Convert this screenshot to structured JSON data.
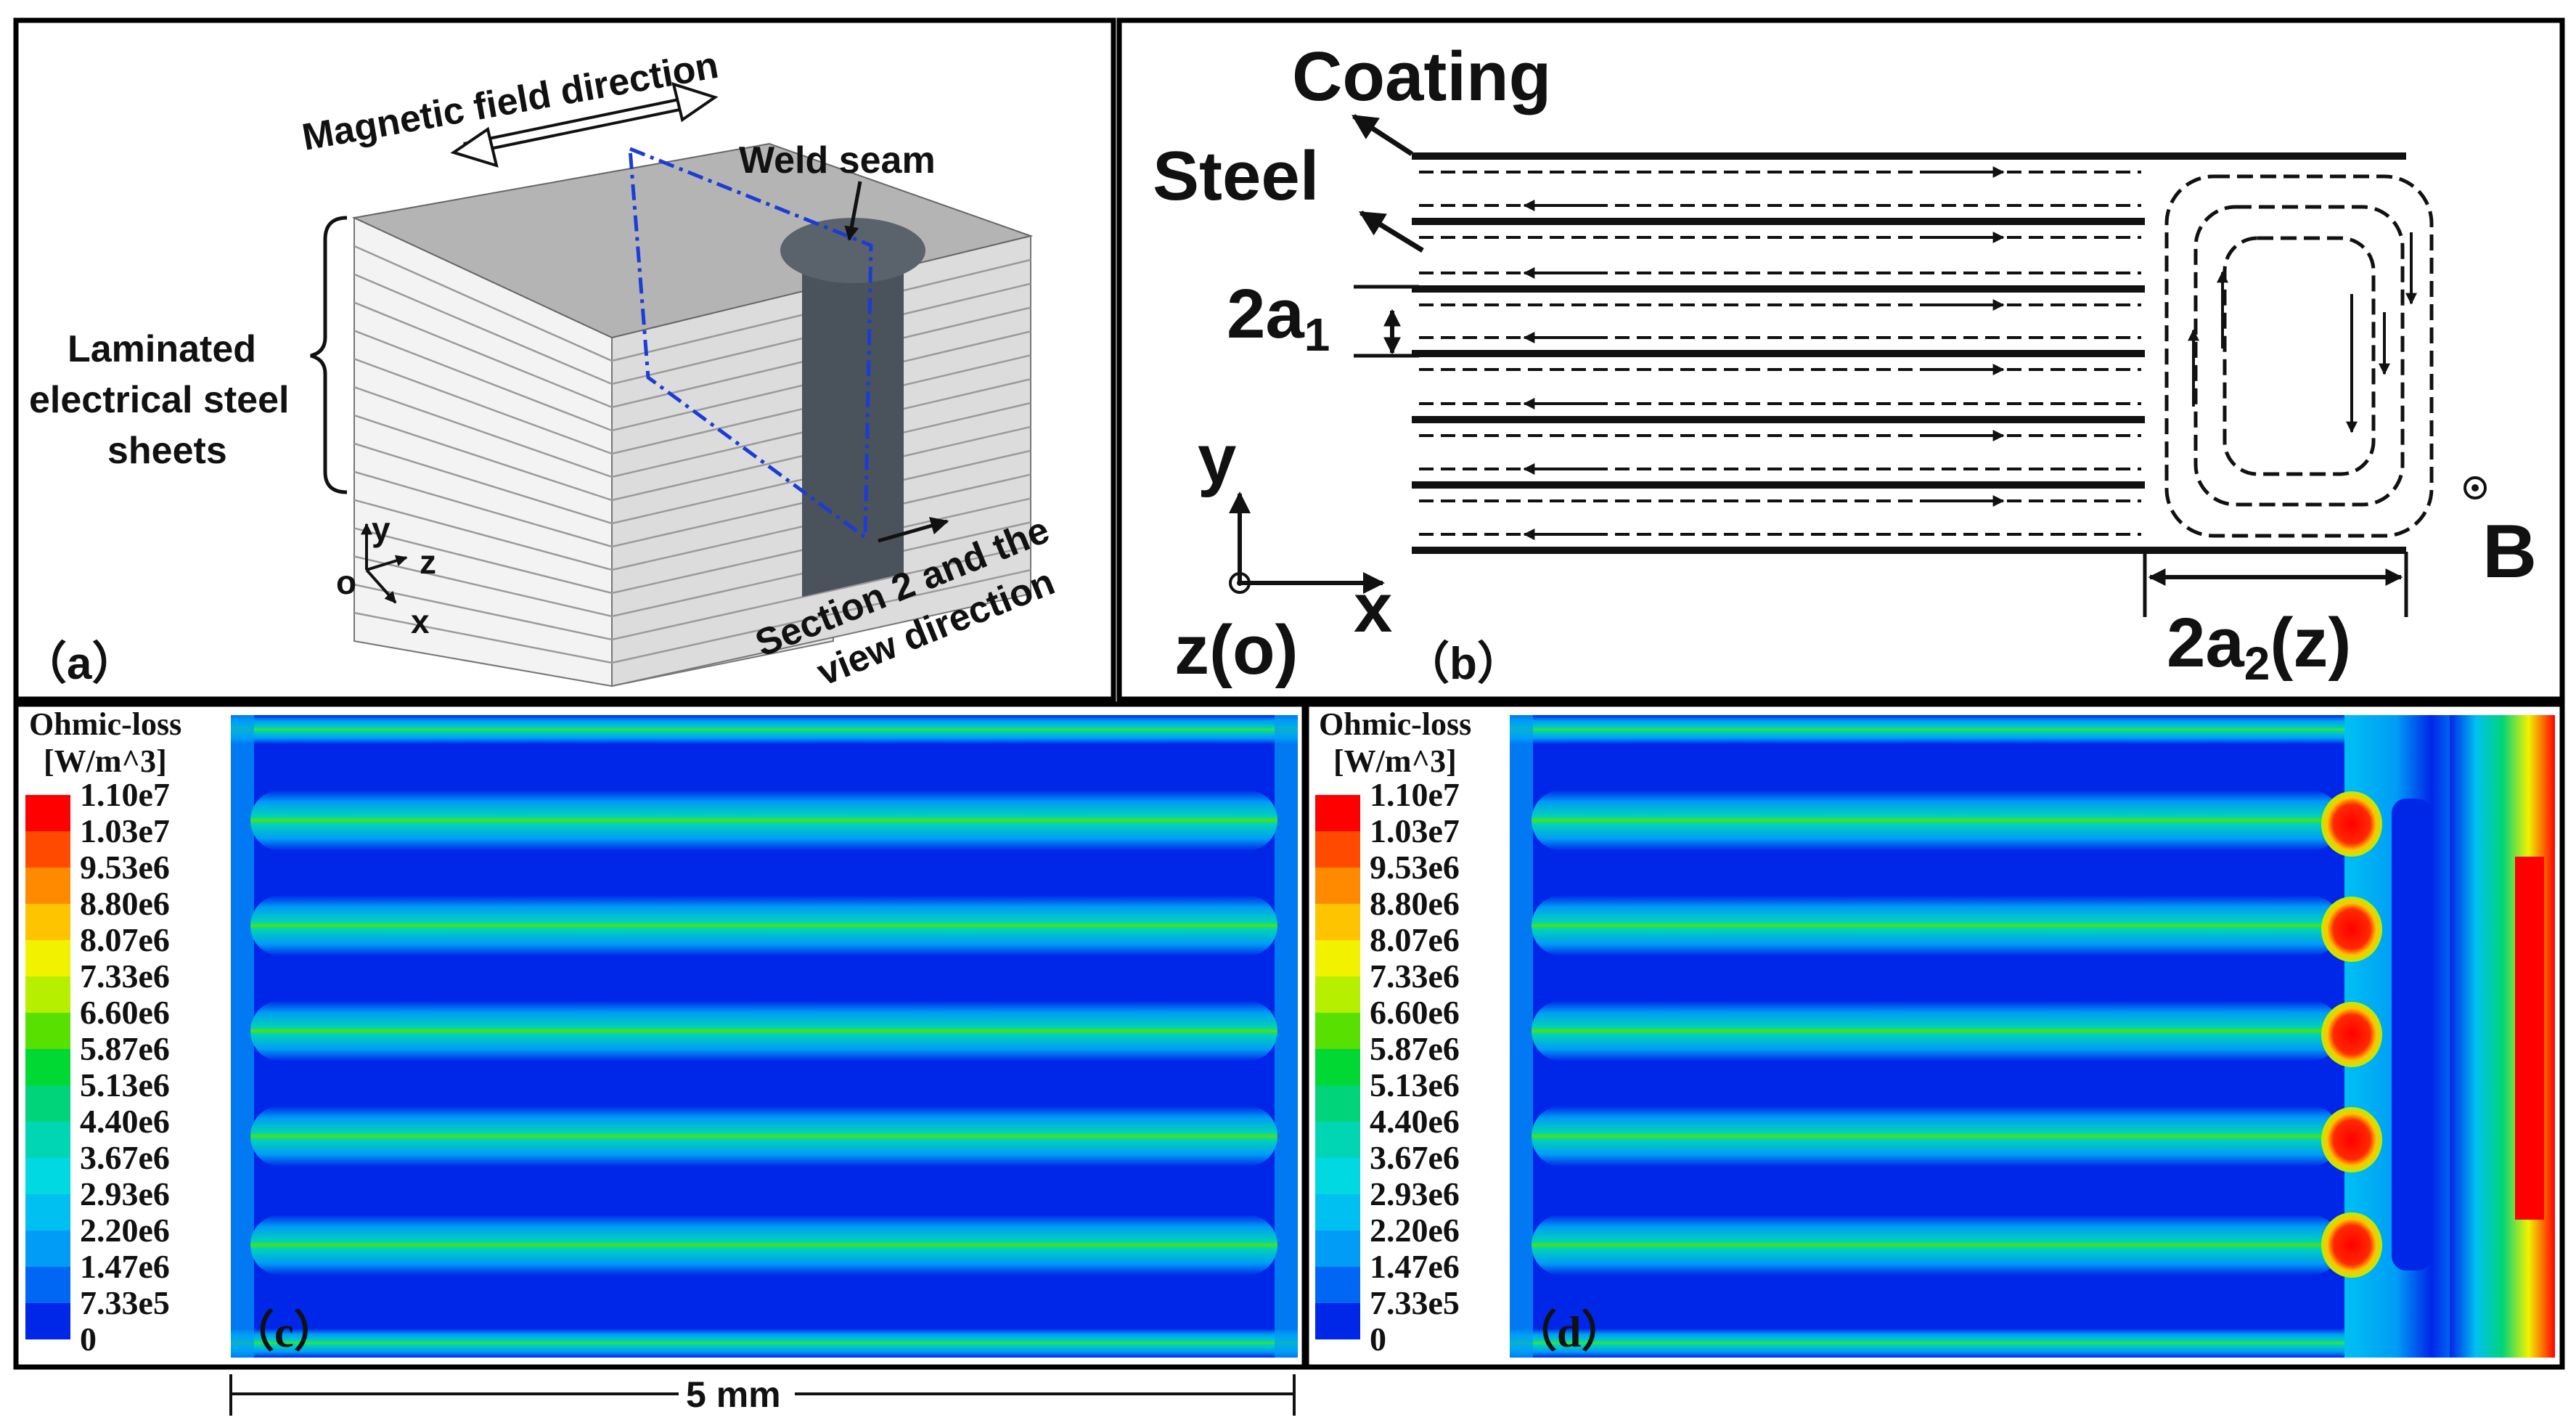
{
  "panel_a": {
    "label": "（a）",
    "magnetic_field": "Magnetic field direction",
    "weld_seam": "Weld seam",
    "laminated_line1": "Laminated",
    "laminated_line2": "electrical steel",
    "laminated_line3": "sheets",
    "section_line1": "Section 2 and the",
    "section_line2": "view direction",
    "axis_y": "y",
    "axis_z": "z",
    "axis_o": "o",
    "axis_x": "x"
  },
  "panel_b": {
    "label": "（b）",
    "coating": "Coating",
    "steel": "Steel",
    "a1_main": "2a",
    "a1_sub": "1",
    "a2_main": "2a",
    "a2_sub": "2",
    "a2_suffix": "(z)",
    "axis_y": "y",
    "axis_x": "x",
    "axis_zo": "z(o)",
    "b_field": "B"
  },
  "panel_c": {
    "label": "（c）"
  },
  "panel_d": {
    "label": "（d）"
  },
  "legend": {
    "title_line1": "Ohmic-loss",
    "title_line2": "[W/m^3]",
    "values": [
      "1.10e7",
      "1.03e7",
      "9.53e6",
      "8.80e6",
      "8.07e6",
      "7.33e6",
      "6.60e6",
      "5.87e6",
      "5.13e6",
      "4.40e6",
      "3.67e6",
      "2.93e6",
      "2.20e6",
      "1.47e6",
      "7.33e5",
      "0"
    ],
    "colors": [
      "#ff0000",
      "#ff4a00",
      "#ff8a00",
      "#ffc400",
      "#f2f200",
      "#b6f000",
      "#57e000",
      "#00d834",
      "#00d47a",
      "#00d6b4",
      "#00d8e2",
      "#00c0f2",
      "#009cf6",
      "#0066f4",
      "#0026e8"
    ]
  },
  "scale_bar": {
    "label": "5 mm"
  },
  "colors": {
    "field_blue": "#0a2bd9",
    "panel_border": "#000000",
    "dash_blue": "#1b3cd6"
  }
}
